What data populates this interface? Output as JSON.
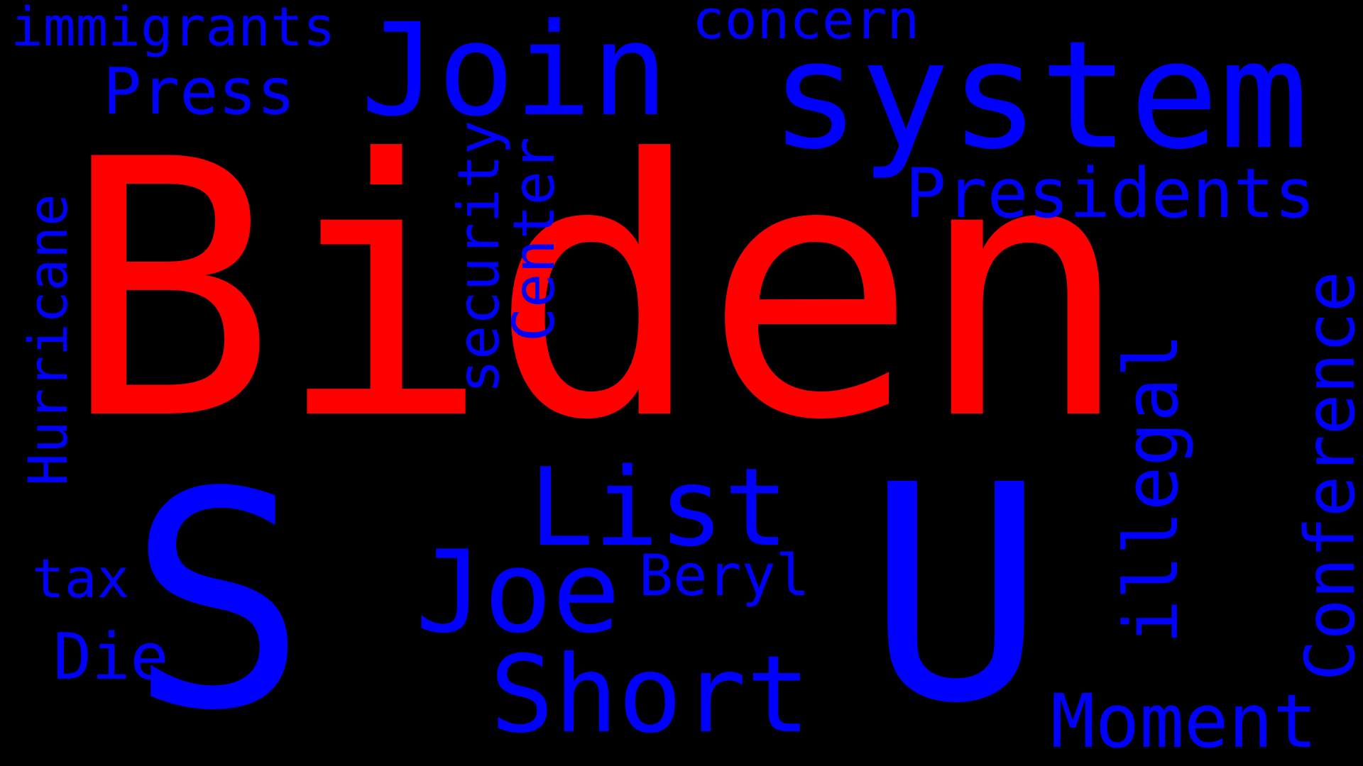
{
  "colors": {
    "background": "#000000",
    "primary": "#ff0000",
    "secondary": "#0000ff"
  },
  "words": {
    "biden": "Biden",
    "s": "S",
    "u": "U",
    "system": "system",
    "join": "Join",
    "list": "List",
    "joe": "Joe",
    "short": "Short",
    "presidents": "Presidents",
    "press": "Press",
    "moment": "Moment",
    "immigrants": "immigrants",
    "concern": "concern",
    "security": "security",
    "center": "Center",
    "hurricane": "Hurricane",
    "illegal": "illegal",
    "conference": "Conference",
    "tax": "tax",
    "die": "Die",
    "beryl": "Beryl"
  }
}
